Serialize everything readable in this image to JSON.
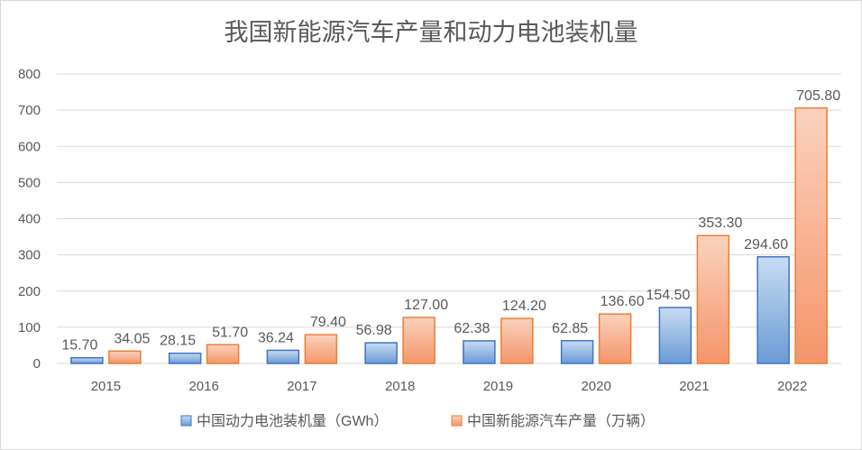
{
  "chart_data": {
    "type": "bar",
    "title": "我国新能源汽车产量和动力电池装机量",
    "categories": [
      "2015",
      "2016",
      "2017",
      "2018",
      "2019",
      "2020",
      "2021",
      "2022"
    ],
    "ylim": [
      0,
      800
    ],
    "yticks": [
      0,
      100,
      200,
      300,
      400,
      500,
      600,
      700,
      800
    ],
    "grid": true,
    "legend_position": "bottom",
    "series": [
      {
        "name": "中国动力电池装机量（GWh）",
        "values": [
          15.7,
          28.15,
          36.24,
          56.98,
          62.38,
          62.85,
          154.5,
          294.6
        ],
        "value_labels": [
          "15.70",
          "28.15",
          "36.24",
          "56.98",
          "62.38",
          "62.85",
          "154.50",
          "294.60"
        ],
        "color": "#5b9bd5",
        "fill_top": "#c7dcf2",
        "fill_bottom": "#6a9bd6",
        "stroke": "#4472c4"
      },
      {
        "name": "中国新能源汽车产量（万辆）",
        "values": [
          34.05,
          51.7,
          79.4,
          127.0,
          124.2,
          136.6,
          353.3,
          705.8
        ],
        "value_labels": [
          "34.05",
          "51.70",
          "79.40",
          "127.00",
          "124.20",
          "136.60",
          "353.30",
          "705.80"
        ],
        "color": "#ed7d31",
        "fill_top": "#fbd2bd",
        "fill_bottom": "#f4956a",
        "stroke": "#ed7d31"
      }
    ]
  }
}
